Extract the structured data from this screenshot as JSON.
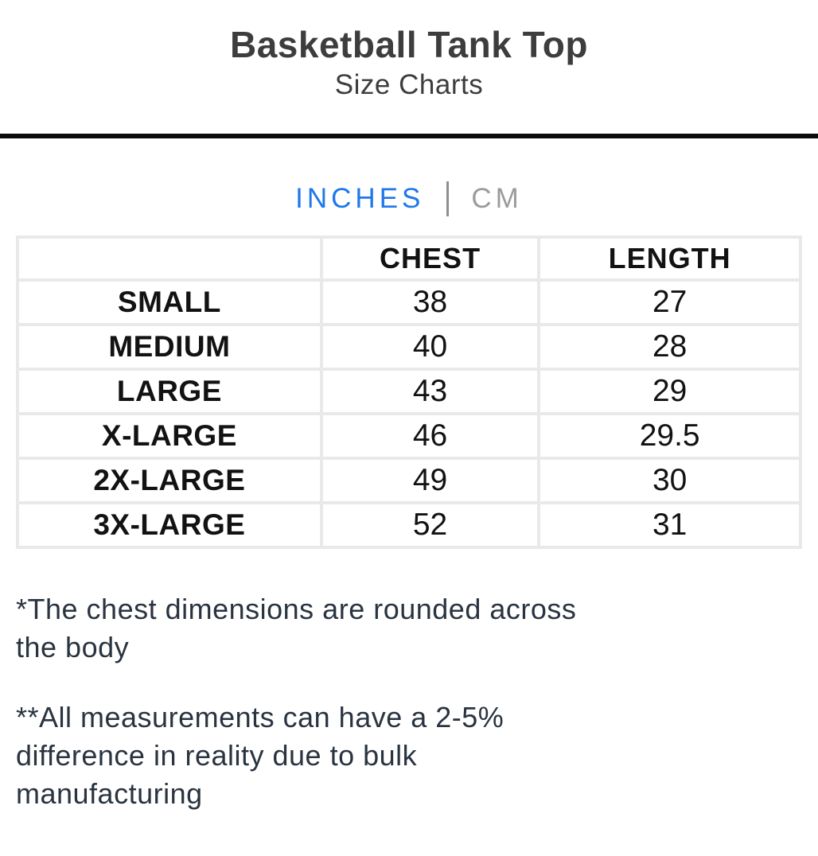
{
  "header": {
    "title": "Basketball Tank Top",
    "subtitle": "Size Charts"
  },
  "units": {
    "inches_label": "INCHES",
    "cm_label": "CM",
    "active_unit": "INCHES",
    "active_color": "#1e78ea",
    "inactive_color": "#9b9b9b"
  },
  "table": {
    "columns": [
      "",
      "CHEST",
      "LENGTH"
    ],
    "unit": "INCHES",
    "rows": [
      {
        "size": "SMALL",
        "chest": "38",
        "length": "27"
      },
      {
        "size": "MEDIUM",
        "chest": "40",
        "length": "28"
      },
      {
        "size": "LARGE",
        "chest": "43",
        "length": "29"
      },
      {
        "size": "X-LARGE",
        "chest": "46",
        "length": "29.5"
      },
      {
        "size": "2X-LARGE",
        "chest": "49",
        "length": "30"
      },
      {
        "size": "3X-LARGE",
        "chest": "52",
        "length": "31"
      }
    ]
  },
  "notes": {
    "note1_lines": [
      "*The chest dimensions are rounded across",
      "the body"
    ],
    "note2_lines": [
      "**All measurements can have a 2-5%",
      "difference in reality due to bulk",
      "manufacturing"
    ]
  },
  "colors": {
    "title_text": "#3d3d3d",
    "table_text": "#121212",
    "table_border": "#e9e9eb",
    "rule": "#0b0b0b",
    "note_text": "#293440",
    "tab_active": "#1e78ea",
    "tab_inactive": "#9b9b9b"
  }
}
